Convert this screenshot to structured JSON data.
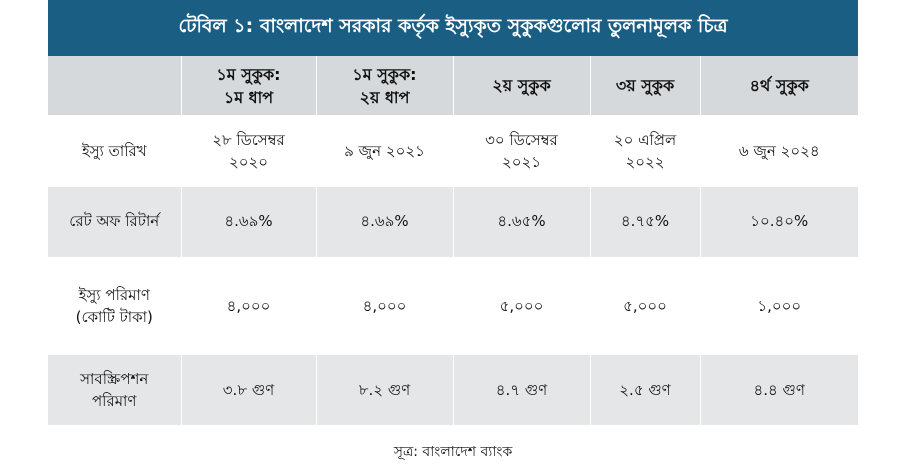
{
  "title": "টেবিল ১: বাংলাদেশ সরকার কর্তৃক ইস্যুকৃত সুকুকগুলোর তুলনামূলক চিত্র",
  "columns": [
    {
      "line1": "",
      "line2": ""
    },
    {
      "line1": "১ম সুকুক:",
      "line2": "১ম ধাপ"
    },
    {
      "line1": "১ম সুকুক:",
      "line2": "২য় ধাপ"
    },
    {
      "line1": "২য় সুকুক",
      "line2": ""
    },
    {
      "line1": "৩য় সুকুক",
      "line2": ""
    },
    {
      "line1": "৪র্থ সুকুক",
      "line2": ""
    }
  ],
  "rows": [
    {
      "label": {
        "line1": "ইস্যু তারিখ",
        "line2": ""
      },
      "cells": [
        {
          "line1": "২৮ ডিসেম্বর",
          "line2": "২০২০"
        },
        {
          "line1": "৯ জুন ২০২১",
          "line2": ""
        },
        {
          "line1": "৩০ ডিসেম্বর",
          "line2": "২০২১"
        },
        {
          "line1": "২০ এপ্রিল",
          "line2": "২০২২"
        },
        {
          "line1": "৬ জুন ২০২৪",
          "line2": ""
        }
      ]
    },
    {
      "label": {
        "line1": "রেট অফ রিটার্ন",
        "line2": ""
      },
      "cells": [
        {
          "line1": "৪.৬৯%",
          "line2": ""
        },
        {
          "line1": "৪.৬৯%",
          "line2": ""
        },
        {
          "line1": "৪.৬৫%",
          "line2": ""
        },
        {
          "line1": "৪.৭৫%",
          "line2": ""
        },
        {
          "line1": "১০.৪০%",
          "line2": ""
        }
      ]
    },
    {
      "label": {
        "line1": "ইস্যু পরিমাণ",
        "line2": "(কোটি টাকা)"
      },
      "cells": [
        {
          "line1": "৪,০০০",
          "line2": ""
        },
        {
          "line1": "৪,০০০",
          "line2": ""
        },
        {
          "line1": "৫,০০০",
          "line2": ""
        },
        {
          "line1": "৫,০০০",
          "line2": ""
        },
        {
          "line1": "১,০০০",
          "line2": ""
        }
      ]
    },
    {
      "label": {
        "line1": "সাবস্ক্রিপশন",
        "line2": "পরিমাণ"
      },
      "cells": [
        {
          "line1": "৩.৮ গুণ",
          "line2": ""
        },
        {
          "line1": "৮.২ গুণ",
          "line2": ""
        },
        {
          "line1": "৪.৭ গুণ",
          "line2": ""
        },
        {
          "line1": "২.৫ গুণ",
          "line2": ""
        },
        {
          "line1": "৪.৪ গুণ",
          "line2": ""
        }
      ]
    }
  ],
  "source": "সূত্র: বাংলাদেশ ব্যাংক",
  "colors": {
    "title_bg": "#1b5e84",
    "header_bg": "#d6d9dc",
    "alt_row_bg": "#e4e6e8"
  }
}
